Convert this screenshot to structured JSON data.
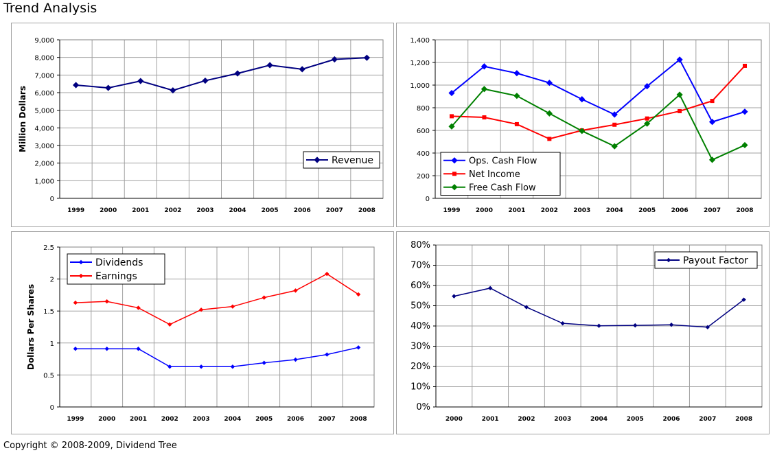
{
  "page": {
    "title": "Trend Analysis",
    "copyright": "Copyright © 2008-2009, Dividend Tree"
  },
  "colors": {
    "navy": "#000080",
    "blue": "#0000ff",
    "red": "#ff0000",
    "green": "#008000",
    "grid": "#a0a0a0"
  },
  "chart_data": [
    {
      "id": "revenue",
      "type": "line",
      "title": "",
      "xlabel": "",
      "ylabel": "Million Dollars",
      "categories": [
        "1999",
        "2000",
        "2001",
        "2002",
        "2003",
        "2004",
        "2005",
        "2006",
        "2007",
        "2008"
      ],
      "ylim": [
        0,
        9000
      ],
      "ytick_labels": [
        "0",
        "1,000",
        "2,000",
        "3,000",
        "4,000",
        "5,000",
        "6,000",
        "7,000",
        "8,000",
        "9,000"
      ],
      "legend_position": "bottom-right",
      "series": [
        {
          "name": "Revenue",
          "color": "#000080",
          "marker": "diamond",
          "values": [
            6430,
            6270,
            6660,
            6130,
            6680,
            7090,
            7560,
            7330,
            7890,
            7980
          ]
        }
      ]
    },
    {
      "id": "cashflow",
      "type": "line",
      "title": "",
      "xlabel": "",
      "ylabel": "",
      "categories": [
        "1999",
        "2000",
        "2001",
        "2002",
        "2003",
        "2004",
        "2005",
        "2006",
        "2007",
        "2008"
      ],
      "ylim": [
        0,
        1400
      ],
      "ytick_labels": [
        "0",
        "200",
        "400",
        "600",
        "800",
        "1,000",
        "1,200",
        "1,400"
      ],
      "legend_position": "bottom-left",
      "series": [
        {
          "name": "Ops. Cash Flow",
          "color": "#0000ff",
          "marker": "diamond",
          "values": [
            930,
            1165,
            1105,
            1020,
            875,
            740,
            990,
            1225,
            675,
            765
          ]
        },
        {
          "name": "Net Income",
          "color": "#ff0000",
          "marker": "square",
          "values": [
            725,
            715,
            655,
            525,
            600,
            650,
            705,
            770,
            860,
            1170
          ]
        },
        {
          "name": "Free Cash Flow",
          "color": "#008000",
          "marker": "diamond",
          "values": [
            635,
            965,
            905,
            750,
            595,
            460,
            660,
            915,
            340,
            470
          ]
        }
      ]
    },
    {
      "id": "pershare",
      "type": "line",
      "title": "",
      "xlabel": "",
      "ylabel": "Dollars Per Shares",
      "categories": [
        "1999",
        "2000",
        "2001",
        "2002",
        "2003",
        "2004",
        "2005",
        "2006",
        "2007",
        "2008"
      ],
      "ylim": [
        0,
        2.5
      ],
      "ytick_labels": [
        "0",
        "0.5",
        "1",
        "1.5",
        "2",
        "2.5"
      ],
      "legend_position": "top-left",
      "series": [
        {
          "name": "Dividends",
          "color": "#0000ff",
          "marker": "small-diamond",
          "values": [
            0.91,
            0.91,
            0.91,
            0.63,
            0.63,
            0.63,
            0.69,
            0.74,
            0.82,
            0.93
          ]
        },
        {
          "name": "Earnings",
          "color": "#ff0000",
          "marker": "small-diamond",
          "values": [
            1.63,
            1.65,
            1.55,
            1.29,
            1.52,
            1.57,
            1.71,
            1.82,
            2.08,
            1.76
          ]
        }
      ]
    },
    {
      "id": "payout",
      "type": "line",
      "title": "",
      "xlabel": "",
      "ylabel": "",
      "categories": [
        "2000",
        "2001",
        "2002",
        "2003",
        "2004",
        "2005",
        "2006",
        "2007",
        "2008"
      ],
      "ylim": [
        0,
        80
      ],
      "ytick_labels": [
        "0%",
        "10%",
        "20%",
        "30%",
        "40%",
        "50%",
        "60%",
        "70%",
        "80%"
      ],
      "legend_position": "top-right",
      "series": [
        {
          "name": "Payout Factor",
          "color": "#000080",
          "marker": "small-diamond",
          "values": [
            54.7,
            58.7,
            49.3,
            41.3,
            40.1,
            40.3,
            40.6,
            39.4,
            53.0
          ]
        }
      ]
    }
  ]
}
